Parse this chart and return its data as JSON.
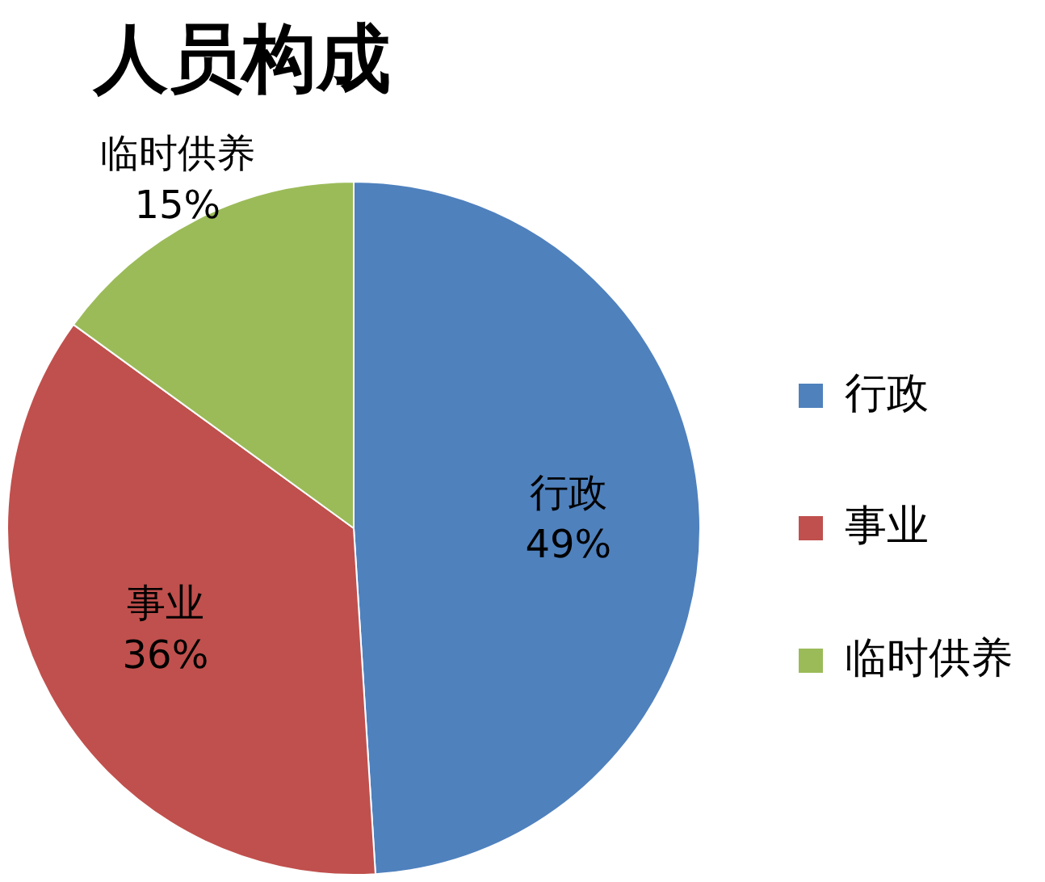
{
  "chart_data": {
    "type": "pie",
    "title": "人员构成",
    "categories": [
      "行政",
      "事业",
      "临时供养"
    ],
    "values": [
      49,
      36,
      15
    ],
    "value_labels": [
      "49%",
      "36%",
      "15%"
    ],
    "colors": [
      "#4f81bd",
      "#c0504d",
      "#9bbb59"
    ],
    "legend": "right"
  }
}
